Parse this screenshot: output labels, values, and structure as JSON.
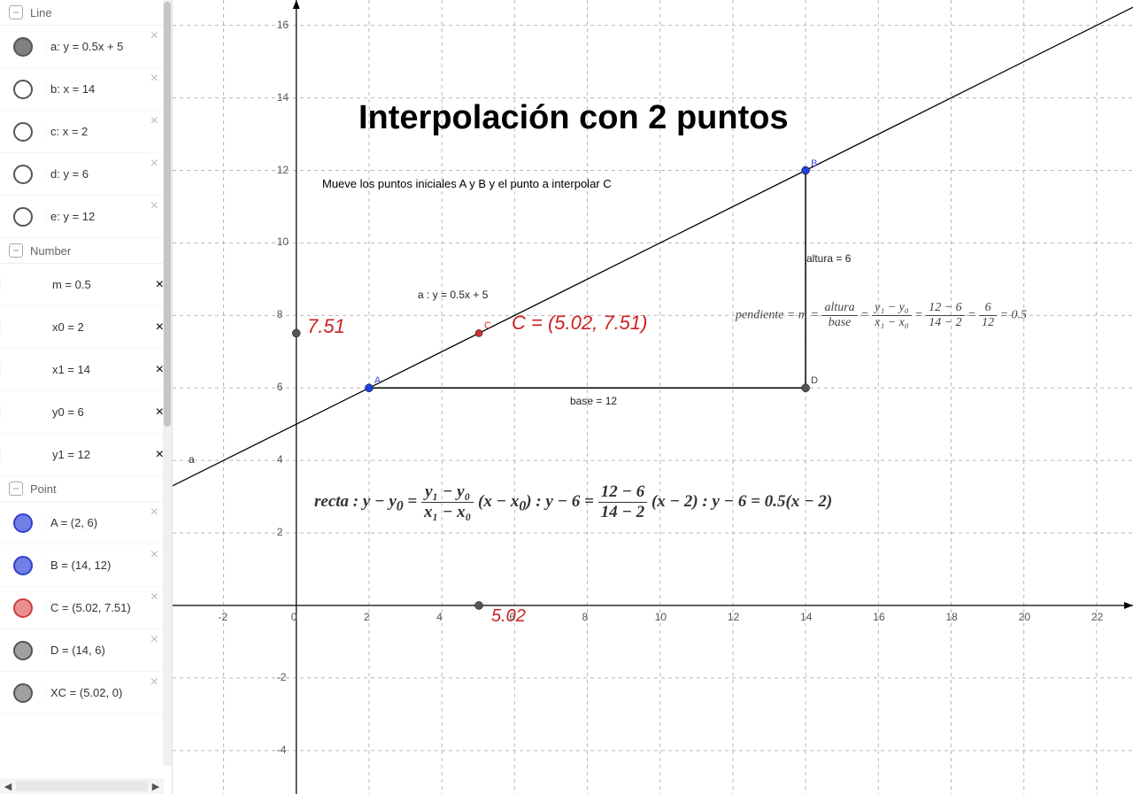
{
  "sidebar": {
    "sections": {
      "line": {
        "title": "Line",
        "items": [
          {
            "label": "a: y = 0.5x + 5",
            "fill": "#808080",
            "stroke": "#555555"
          },
          {
            "label": "b: x = 14",
            "fill": "#ffffff",
            "stroke": "#555555"
          },
          {
            "label": "c: x = 2",
            "fill": "#ffffff",
            "stroke": "#555555"
          },
          {
            "label": "d: y = 6",
            "fill": "#ffffff",
            "stroke": "#555555"
          },
          {
            "label": "e: y = 12",
            "fill": "#ffffff",
            "stroke": "#555555"
          }
        ]
      },
      "number": {
        "title": "Number",
        "items": [
          {
            "label": "m = 0.5"
          },
          {
            "label": "x0 = 2"
          },
          {
            "label": "x1 = 14"
          },
          {
            "label": "y0 = 6"
          },
          {
            "label": "y1 = 12"
          }
        ]
      },
      "point": {
        "title": "Point",
        "items": [
          {
            "label": "A = (2, 6)",
            "fill": "#7080e8",
            "stroke": "#3040cc"
          },
          {
            "label": "B = (14, 12)",
            "fill": "#7080e8",
            "stroke": "#3040cc"
          },
          {
            "label": "C = (5.02, 7.51)",
            "fill": "#e89090",
            "stroke": "#cc4040"
          },
          {
            "label": "D = (14, 6)",
            "fill": "#a0a0a0",
            "stroke": "#555555"
          },
          {
            "label": "XC = (5.02, 0)",
            "fill": "#a0a0a0",
            "stroke": "#555555"
          }
        ]
      }
    }
  },
  "graph": {
    "title": "Interpolación con 2 puntos",
    "title_fontsize": 38,
    "subtitle": "Mueve los puntos iniciales A y B y el punto a interpolar C",
    "xlim": [
      -3.4,
      23
    ],
    "ylim": [
      -5.2,
      16.7
    ],
    "x_ticks": [
      -2,
      0,
      2,
      4,
      6,
      8,
      10,
      12,
      14,
      16,
      18,
      20,
      22
    ],
    "y_ticks": [
      -4,
      -2,
      2,
      4,
      6,
      8,
      10,
      12,
      14,
      16
    ],
    "grid_color": "#b8b8b8",
    "axis_color": "#000000",
    "line_label": "a",
    "line_eq_label": "a : y = 0.5x + 5",
    "line": {
      "m": 0.5,
      "b": 5,
      "x0": -3.4,
      "x1": 23
    },
    "points": {
      "A": {
        "x": 2,
        "y": 6,
        "color": "#2040dd",
        "label": "A"
      },
      "B": {
        "x": 14,
        "y": 12,
        "color": "#2040dd",
        "label": "B"
      },
      "C": {
        "x": 5.02,
        "y": 7.51,
        "color": "#cc3030",
        "label": "C"
      },
      "D": {
        "x": 14,
        "y": 6,
        "color": "#555555",
        "label": "D"
      },
      "XC": {
        "x": 5.02,
        "y": 0,
        "color": "#555555"
      },
      "YC": {
        "x": 0,
        "y": 7.51,
        "color": "#555555"
      }
    },
    "c_point_text": "C = (5.02, 7.51)",
    "xc_text": "5.02",
    "yc_text": "7.51",
    "base_label": "base = 12",
    "altura_label": "altura = 6",
    "pendiente": {
      "prefix": "pendiente = m =",
      "f1_n": "altura",
      "f1_d": "base",
      "f2_n": "y₁ − y₀",
      "f2_d": "x₁ − x₀",
      "f3_n": "12 − 6",
      "f3_d": "14 − 2",
      "f4_n": "6",
      "f4_d": "12",
      "result": "= 0.5"
    },
    "recta": {
      "prefix": "recta : y − y",
      "sub0": "0",
      "eq": " = ",
      "f1_n": "y₁ − y₀",
      "f1_d": "x₁ − x₀",
      "mid1": " (x − x",
      "mid1b": ") : y − 6 = ",
      "f2_n": "12 − 6",
      "f2_d": "14 − 2",
      "mid2": " (x − 2) : y − 6 = 0.5(x − 2)"
    }
  }
}
